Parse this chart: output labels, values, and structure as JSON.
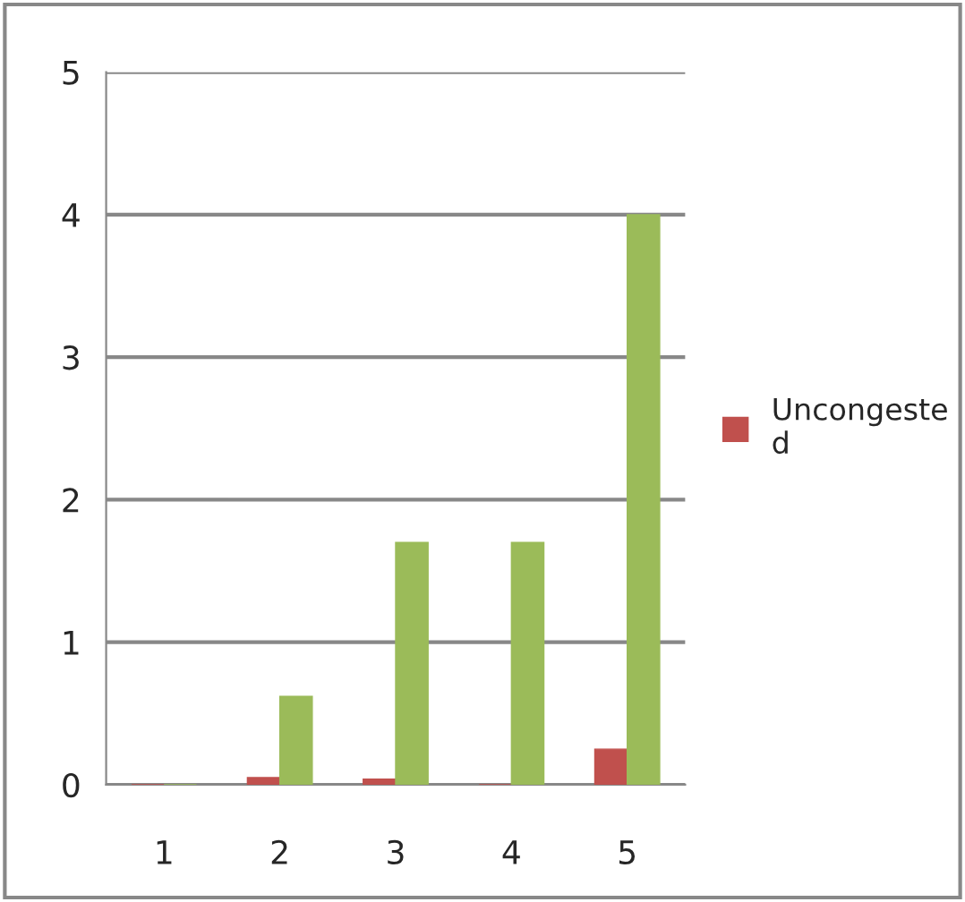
{
  "chart_data": {
    "type": "bar",
    "categories": [
      "1",
      "2",
      "3",
      "4",
      "5"
    ],
    "series": [
      {
        "name": "Uncongeste d",
        "color": "#c0504d",
        "values": [
          0,
          0.05,
          0.04,
          0,
          0.25
        ]
      },
      {
        "color": "#9bbb59",
        "values": [
          0,
          0.62,
          1.7,
          1.7,
          4.0
        ]
      }
    ],
    "ylim": [
      0,
      5
    ],
    "yticks": [
      0,
      1,
      2,
      3,
      4,
      5
    ],
    "grid": "y",
    "legend": "right"
  }
}
